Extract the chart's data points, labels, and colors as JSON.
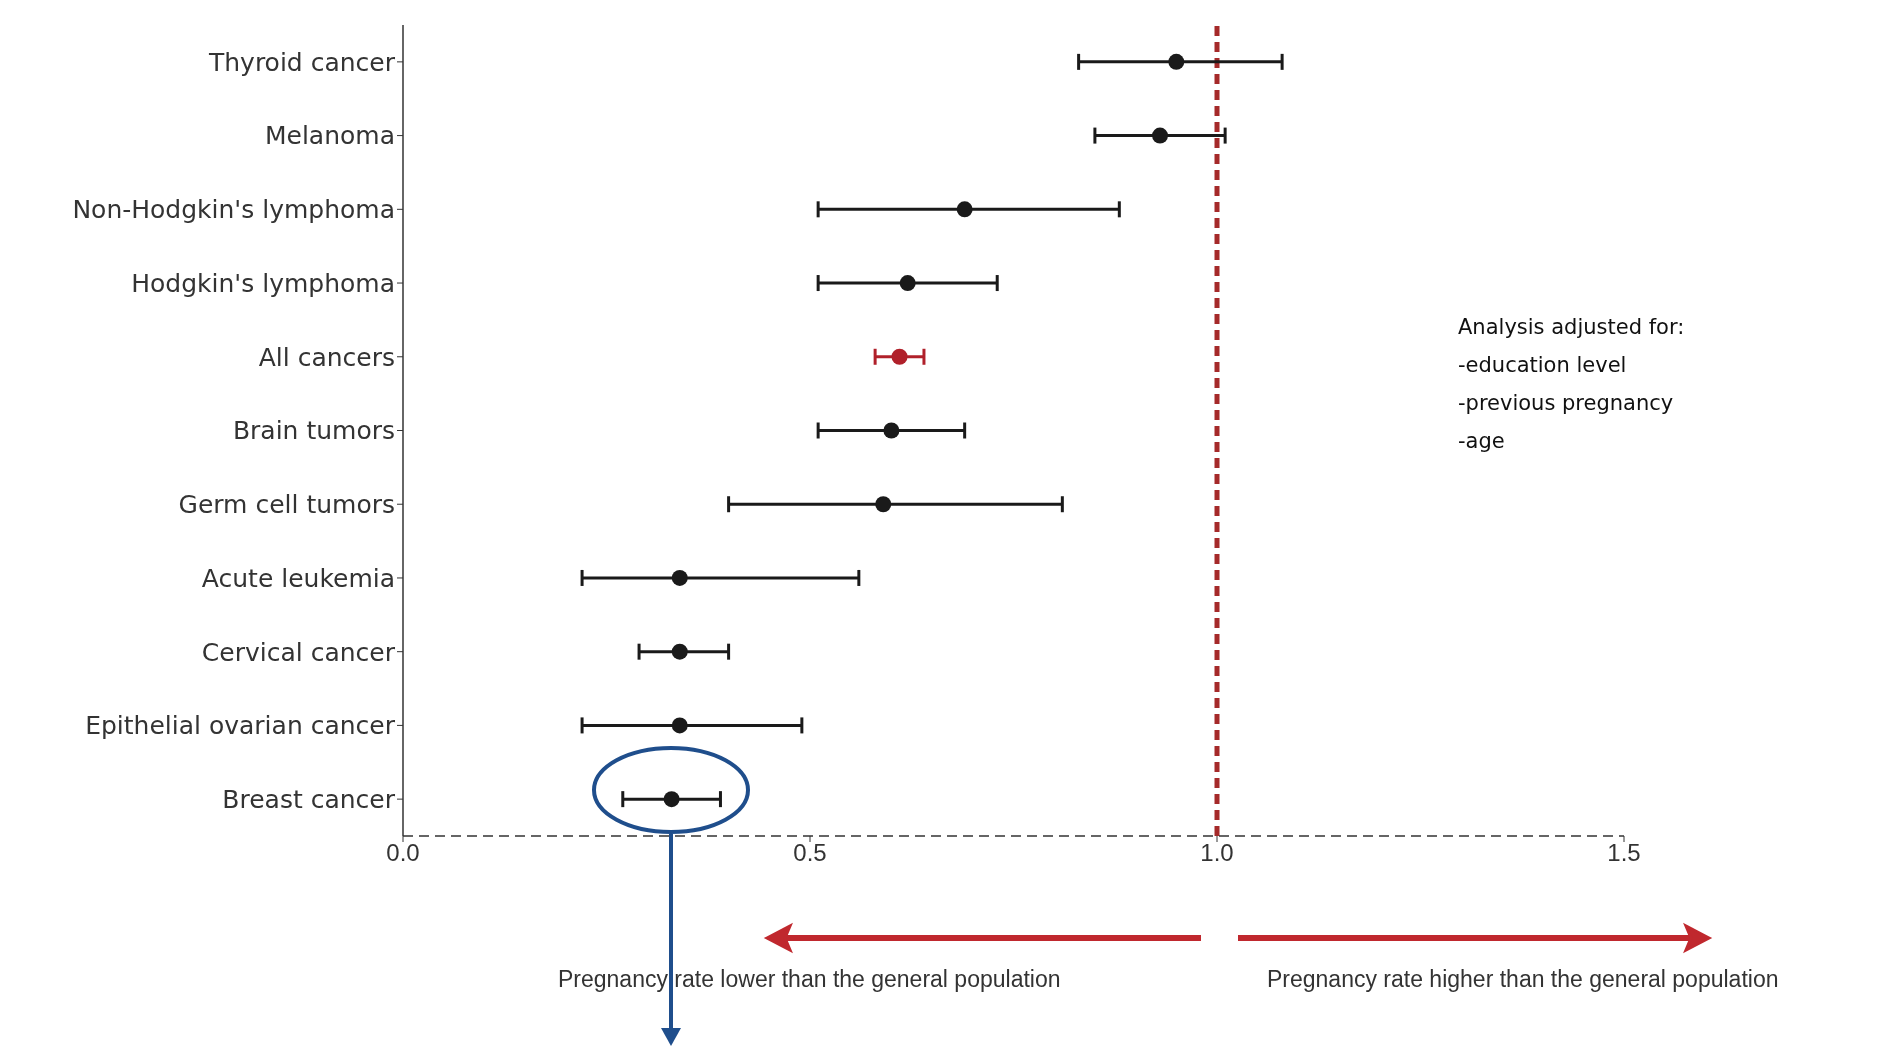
{
  "chart_data": {
    "type": "scatter",
    "orientation": "horizontal",
    "categories": [
      "Thyroid cancer",
      "Melanoma",
      "Non-Hodgkin's lymphoma",
      "Hodgkin's lymphoma",
      "All cancers",
      "Brain tumors",
      "Germ cell tumors",
      "Acute leukemia",
      "Cervical cancer",
      "Epithelial ovarian cancer",
      "Breast cancer"
    ],
    "values": [
      0.95,
      0.93,
      0.69,
      0.62,
      0.61,
      0.6,
      0.59,
      0.34,
      0.34,
      0.34,
      0.33
    ],
    "errors": [
      [
        0.83,
        1.08
      ],
      [
        0.85,
        1.01
      ],
      [
        0.51,
        0.88
      ],
      [
        0.51,
        0.73
      ],
      [
        0.58,
        0.64
      ],
      [
        0.51,
        0.69
      ],
      [
        0.4,
        0.81
      ],
      [
        0.22,
        0.56
      ],
      [
        0.29,
        0.4
      ],
      [
        0.22,
        0.49
      ],
      [
        0.27,
        0.39
      ]
    ],
    "colors": [
      "#1a1a1a",
      "#1a1a1a",
      "#1a1a1a",
      "#1a1a1a",
      "#b0202a",
      "#1a1a1a",
      "#1a1a1a",
      "#1a1a1a",
      "#1a1a1a",
      "#1a1a1a",
      "#1a1a1a"
    ],
    "xlim": [
      0,
      1.5
    ],
    "xticks": [
      {
        "value": 0,
        "label": "0.0"
      },
      0.5,
      {
        "value": 1,
        "label": "1.0"
      },
      1.5
    ],
    "ref_lines": [
      {
        "axis": "x",
        "value": 1,
        "color": "#a52a2a",
        "line_style": "dashed"
      }
    ],
    "marker": "circle",
    "grid": false,
    "legend": false,
    "annotations": [
      "Analysis adjusted for:\n-education level\n-previous pregnancy\n-age",
      "Pregnancy rate lower than the general population",
      "Pregnancy rate higher than the general population"
    ]
  }
}
